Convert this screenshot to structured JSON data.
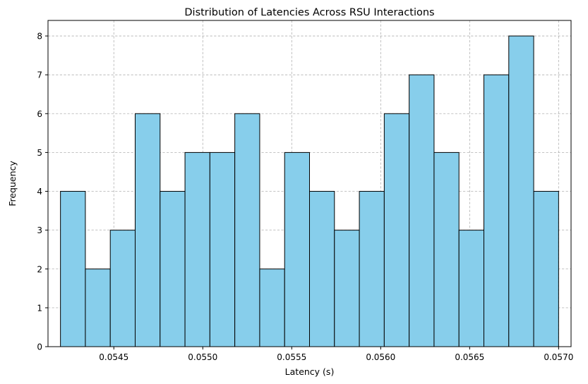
{
  "chart_data": {
    "type": "bar",
    "title": "Distribution of Latencies Across RSU Interactions",
    "xlabel": "Latency (s)",
    "ylabel": "Frequency",
    "bin_edges": [
      0.0542,
      0.05434,
      0.05448,
      0.05462,
      0.05476,
      0.0549,
      0.05504,
      0.05518,
      0.05532,
      0.05546,
      0.0556,
      0.05574,
      0.05588,
      0.05602,
      0.05616,
      0.0563,
      0.05644,
      0.05658,
      0.05672,
      0.05686,
      0.057
    ],
    "values": [
      4,
      2,
      3,
      6,
      4,
      5,
      5,
      6,
      2,
      5,
      4,
      3,
      4,
      6,
      7,
      5,
      3,
      7,
      8,
      4
    ],
    "xlim": [
      0.05413,
      0.05707
    ],
    "ylim": [
      0,
      8.4
    ],
    "x_ticks": [
      0.0545,
      0.055,
      0.0555,
      0.056,
      0.0565,
      0.057
    ],
    "x_tick_labels": [
      "0.0545",
      "0.0550",
      "0.0555",
      "0.0560",
      "0.0565",
      "0.0570"
    ],
    "y_ticks": [
      0,
      1,
      2,
      3,
      4,
      5,
      6,
      7,
      8
    ],
    "y_tick_labels": [
      "0",
      "1",
      "2",
      "3",
      "4",
      "5",
      "6",
      "7",
      "8"
    ],
    "grid": true,
    "colors": {
      "bar_fill": "#87CEEB",
      "bar_edge": "#000000"
    }
  }
}
